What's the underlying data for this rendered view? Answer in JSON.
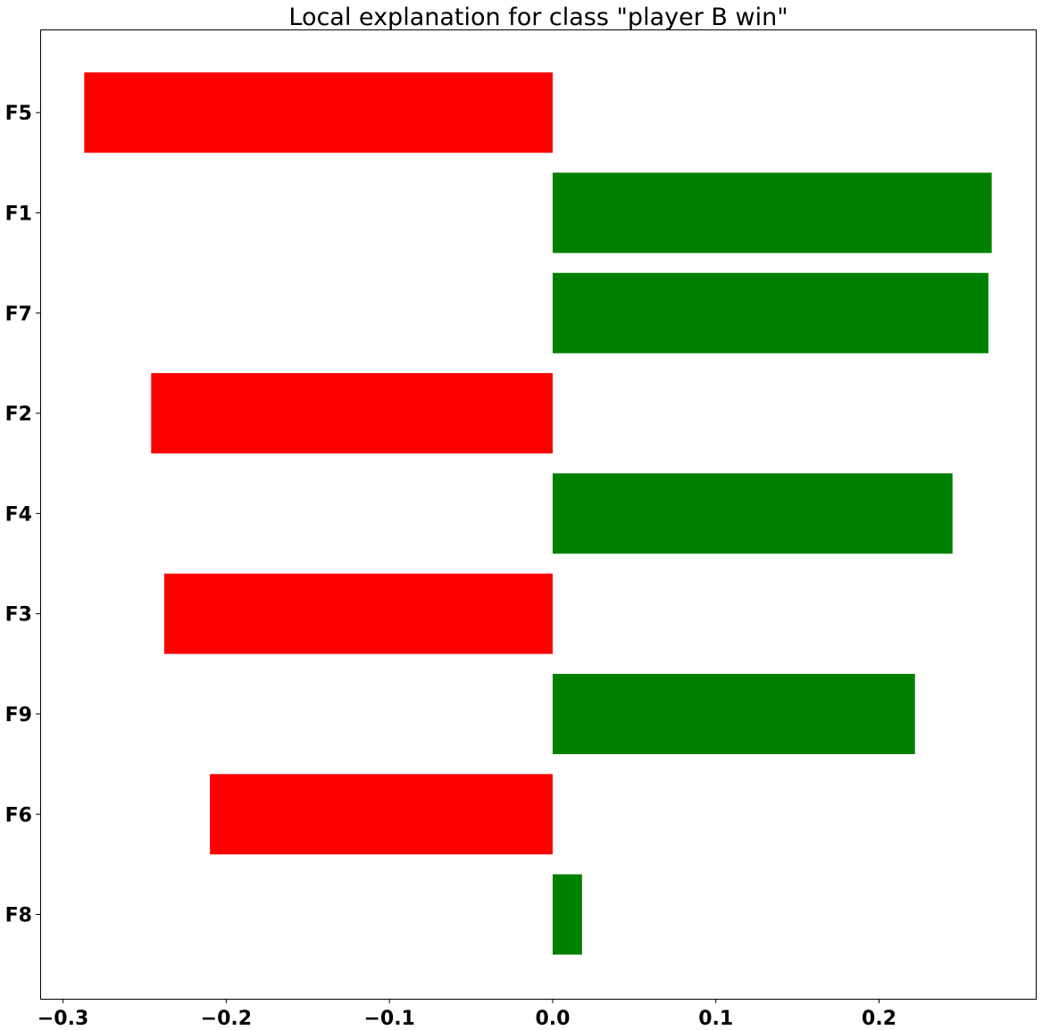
{
  "chart_data": {
    "type": "bar",
    "orientation": "horizontal",
    "title": "Local explanation for class \"player B win\"",
    "xlabel": "",
    "ylabel": "",
    "categories": [
      "F5",
      "F1",
      "F7",
      "F2",
      "F4",
      "F3",
      "F9",
      "F6",
      "F8"
    ],
    "values": [
      -0.287,
      0.269,
      0.267,
      -0.246,
      0.245,
      -0.238,
      0.222,
      -0.21,
      0.018
    ],
    "xlim": [
      -0.314,
      0.296
    ],
    "x_ticks": [
      -0.3,
      -0.2,
      -0.1,
      0.0,
      0.1,
      0.2
    ],
    "x_tick_labels": [
      "−0.3",
      "−0.2",
      "−0.1",
      "0.0",
      "0.1",
      "0.2"
    ],
    "grid": false,
    "colors": {
      "positive": "#008000",
      "negative": "#ff0000"
    }
  }
}
